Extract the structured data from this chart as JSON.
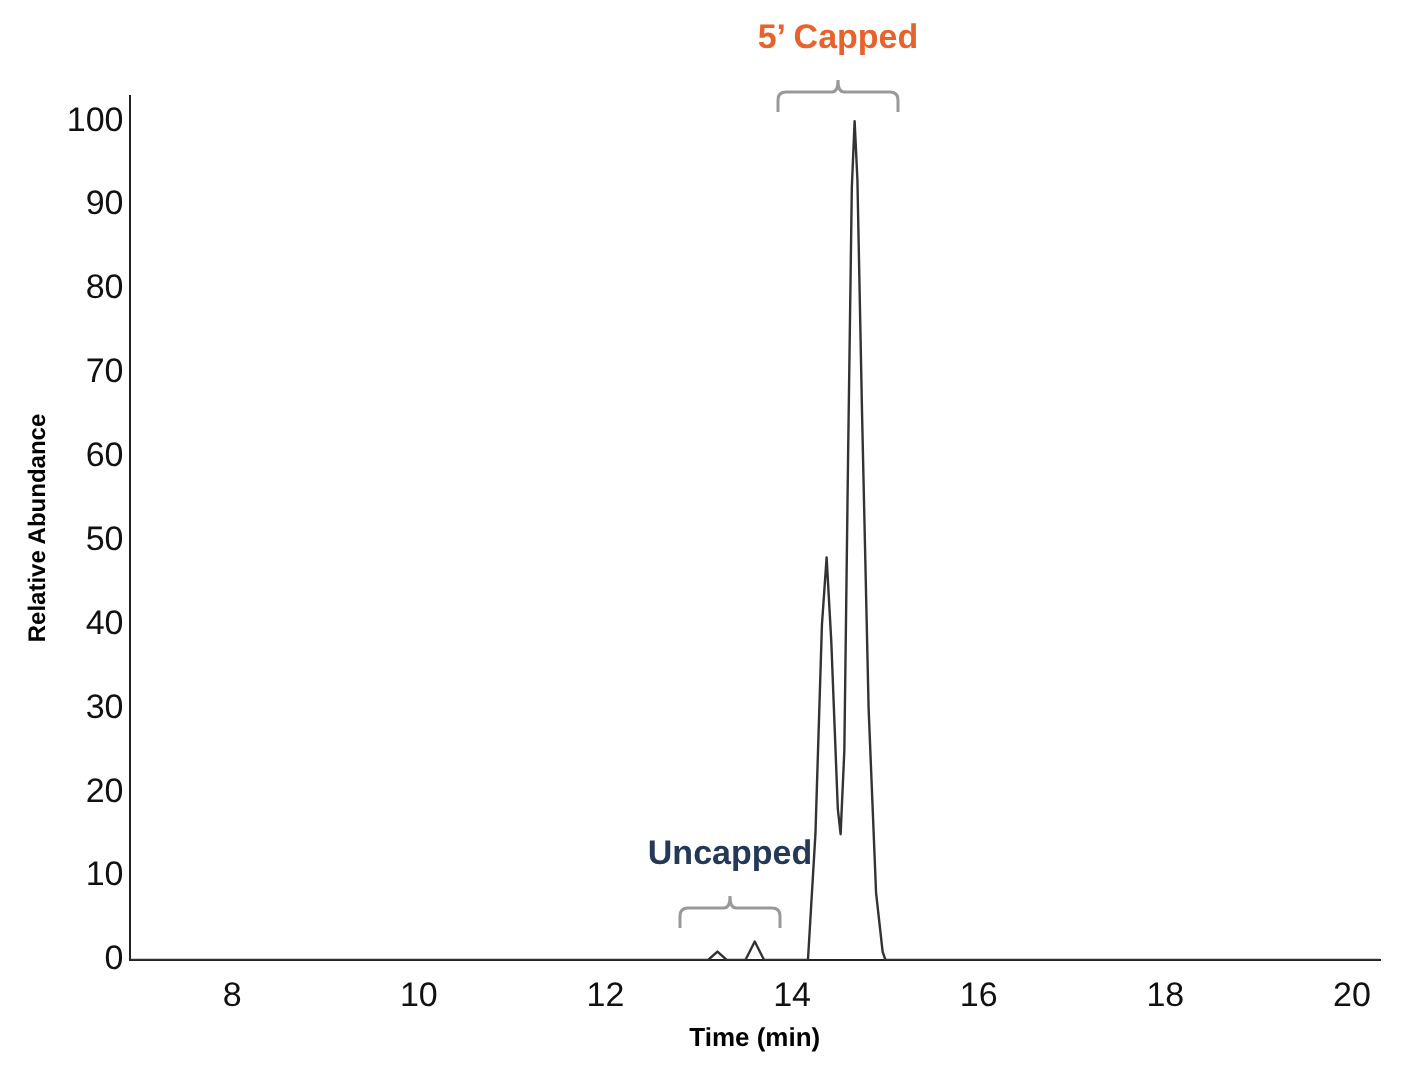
{
  "chart_data": {
    "type": "line",
    "xlabel": "Time (min)",
    "ylabel": "Relative Abundance",
    "xlim": [
      6.9,
      20.3
    ],
    "xticks": [
      8,
      10,
      12,
      14,
      16,
      18,
      20
    ],
    "ylim": [
      0,
      103
    ],
    "yticks": [
      0,
      10,
      20,
      30,
      40,
      50,
      60,
      70,
      80,
      90,
      100
    ],
    "grid": false,
    "legend": false,
    "marker": "none",
    "line_style": "solid",
    "series": [
      {
        "color": "#333333",
        "x": [
          6.9,
          13.1,
          13.2,
          13.3,
          13.5,
          13.6,
          13.7,
          14.17,
          14.25,
          14.32,
          14.37,
          14.42,
          14.49,
          14.52,
          14.56,
          14.6,
          14.64,
          14.67,
          14.7,
          14.75,
          14.82,
          14.9,
          14.97,
          15.0,
          20.3
        ],
        "values": [
          0,
          0,
          1,
          0,
          0,
          2.2,
          0,
          0,
          15,
          40,
          48,
          38,
          18,
          15,
          25,
          60,
          92,
          100,
          93,
          65,
          30,
          8,
          1,
          0,
          0
        ]
      }
    ],
    "annotations": [
      "5’ Capped",
      "Uncapped"
    ]
  }
}
